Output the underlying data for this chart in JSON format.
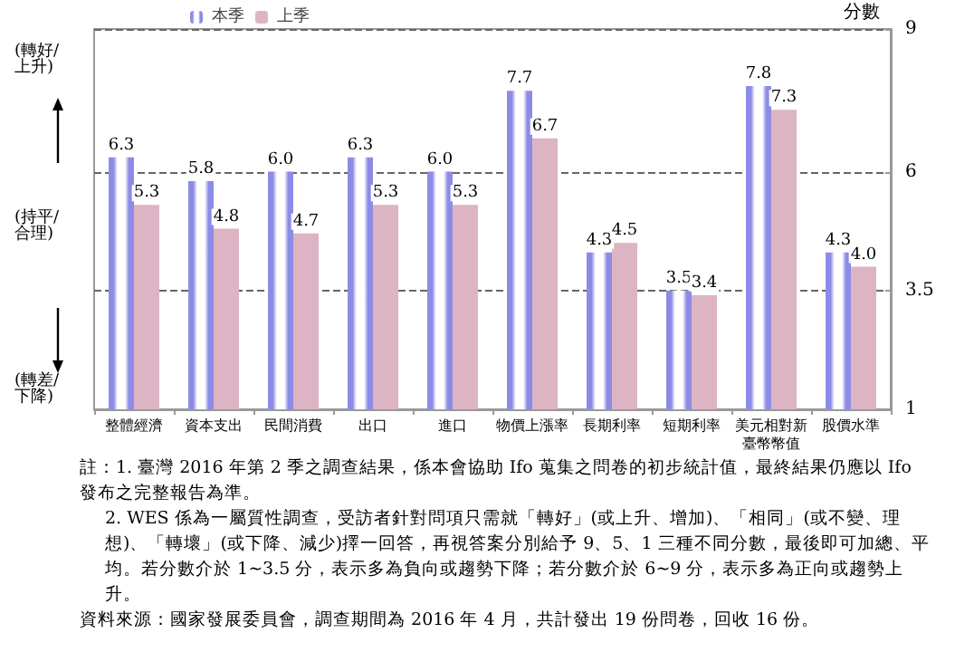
{
  "chart_data": {
    "type": "bar",
    "categories": [
      "整體經濟",
      "資本支出",
      "民間消費",
      "出口",
      "進口",
      "物價上漲率",
      "長期利率",
      "短期利率",
      "美元相對新臺幣幣值",
      "股價水準"
    ],
    "series": [
      {
        "name": "本季",
        "color": "#8c8ce6",
        "values": [
          6.3,
          5.8,
          6.0,
          6.3,
          6.0,
          7.7,
          4.3,
          3.5,
          7.8,
          4.3
        ],
        "value_labels": [
          "6.3",
          "5.8",
          "6.0",
          "6.3",
          "6.0",
          "7.7",
          "4.3",
          "3.5",
          "7.8",
          "4.3"
        ]
      },
      {
        "name": "上季",
        "color": "#dcb4c4",
        "values": [
          5.3,
          4.8,
          4.7,
          5.3,
          5.3,
          6.7,
          4.5,
          3.4,
          7.3,
          4.0
        ],
        "value_labels": [
          "5.3",
          "4.8",
          "4.7",
          "5.3",
          "5.3",
          "6.7",
          "4.5",
          "3.4",
          "7.3",
          "4.0"
        ]
      }
    ],
    "ylabel": "分數",
    "ylim": [
      1,
      9
    ],
    "yticks": [
      1,
      3.5,
      6,
      9
    ],
    "grid": "y",
    "legend": "top",
    "annotations": [
      "(轉好/\n上升)",
      "(持平/\n合理)",
      "(轉差/\n下降)",
      "註：1. 臺灣 2016 年第 2 季之調查結果，係本會協助 Ifo 蒐集之問卷的初步統計值，最終結果仍應以 Ifo 發布之完整報告為準。",
      "2. WES 係為一屬質性調查，受訪者針對問項只需就「轉好」(或上升、增加)、「相同」(或不變、理想)、「轉壞」(或下降、減少)擇一回答，再視答案分別給予 9、5、1 三種不同分數，最後即可加總、平均。若分數介於 1~3.5 分，表示多為負向或趨勢下降；若分數介於 6~9 分，表示多為正向或趨勢上升。",
      "資料來源：國家發展委員會，調查期間為 2016 年 4 月，共計發出 19 份問卷，回收 16 份。"
    ]
  }
}
